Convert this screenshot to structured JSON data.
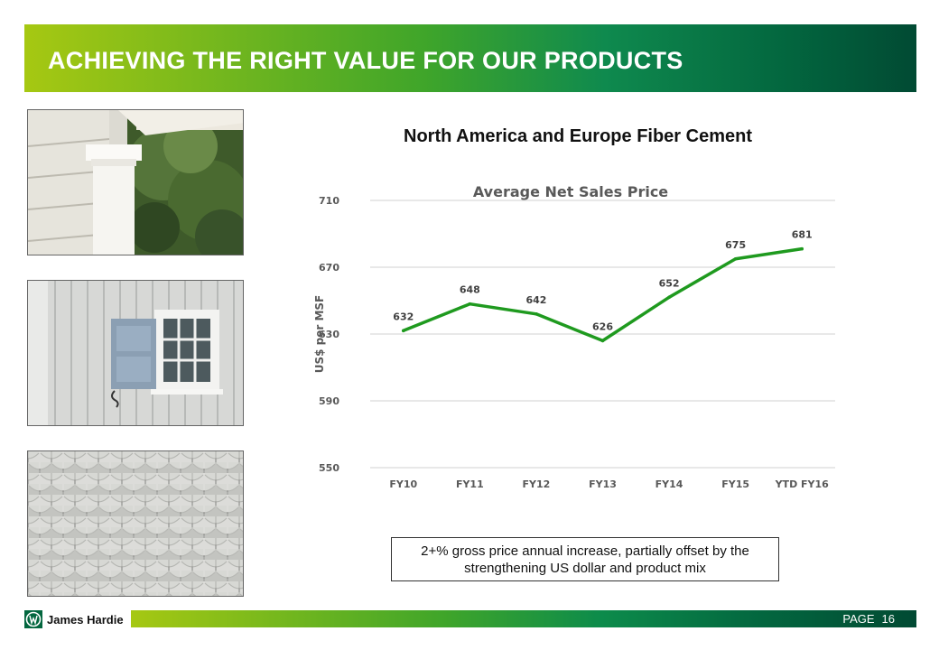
{
  "header": {
    "title": "ACHIEVING THE RIGHT VALUE FOR OUR PRODUCTS"
  },
  "chart_heading": "North America and Europe Fiber Cement",
  "chart_data": {
    "type": "line",
    "title": "Average Net Sales Price",
    "xlabel": "",
    "ylabel": "US$ per MSF",
    "categories": [
      "FY10",
      "FY11",
      "FY12",
      "FY13",
      "FY14",
      "FY15",
      "YTD FY16"
    ],
    "series": [
      {
        "values": [
          632,
          648,
          642,
          626,
          652,
          675,
          681
        ]
      }
    ],
    "ylim": [
      550,
      710
    ],
    "yticks": [
      550,
      590,
      630,
      670,
      710
    ],
    "grid": true,
    "legend": "none",
    "color": "#1f9a1f"
  },
  "note": "2+% gross price annual increase, partially offset by the strengthening US dollar and product mix",
  "footer": {
    "brand": "James Hardie",
    "page_label": "PAGE",
    "page_number": "16"
  },
  "colors": {
    "brand_green": "#03673f",
    "accent_lime": "#a6c812"
  },
  "photos": [
    "porch-siding-photo",
    "board-and-batten-window-photo",
    "shingle-siding-photo"
  ]
}
